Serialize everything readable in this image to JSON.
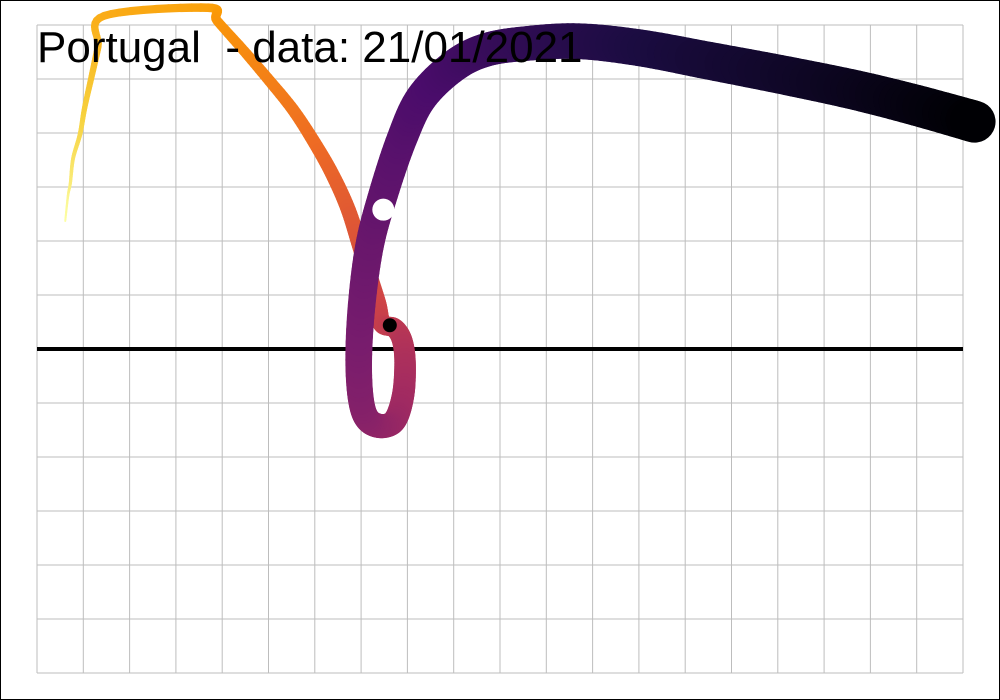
{
  "chart_data": {
    "type": "line",
    "title": "Portugal  - data: 21/01/2021",
    "xlabel": "",
    "ylabel": "",
    "xlim": [
      0,
      20
    ],
    "ylim": [
      -6,
      6
    ],
    "grid": true,
    "legend": "none",
    "reference_line": {
      "y": 0,
      "color": "#000000"
    },
    "series": [
      {
        "points": [
          {
            "x": 0.61,
            "y": 2.37
          },
          {
            "x": 0.67,
            "y": 2.84
          },
          {
            "x": 0.72,
            "y": 3.07
          },
          {
            "x": 0.78,
            "y": 3.53
          },
          {
            "x": 0.93,
            "y": 3.98
          },
          {
            "x": 1.03,
            "y": 4.47
          },
          {
            "x": 1.18,
            "y": 5.05
          },
          {
            "x": 1.32,
            "y": 5.6
          },
          {
            "x": 1.45,
            "y": 6.17
          },
          {
            "x": 3.69,
            "y": 6.32
          },
          {
            "x": 3.89,
            "y": 6.08
          },
          {
            "x": 4.42,
            "y": 5.57
          },
          {
            "x": 4.97,
            "y": 5.02
          },
          {
            "x": 5.53,
            "y": 4.43
          },
          {
            "x": 6.0,
            "y": 3.81
          },
          {
            "x": 6.37,
            "y": 3.25
          },
          {
            "x": 6.7,
            "y": 2.63
          },
          {
            "x": 6.95,
            "y": 1.98
          },
          {
            "x": 7.15,
            "y": 1.42
          },
          {
            "x": 7.35,
            "y": 0.85
          },
          {
            "x": 7.45,
            "y": 0.47
          },
          {
            "x": 7.72,
            "y": 0.39
          },
          {
            "x": 7.89,
            "y": 0.15
          },
          {
            "x": 7.95,
            "y": -0.28
          },
          {
            "x": 7.9,
            "y": -0.89
          },
          {
            "x": 7.7,
            "y": -1.35
          },
          {
            "x": 7.32,
            "y": -1.41
          },
          {
            "x": 7.05,
            "y": -1.15
          },
          {
            "x": 6.95,
            "y": -0.4
          },
          {
            "x": 7.0,
            "y": 0.7
          },
          {
            "x": 7.18,
            "y": 1.9
          },
          {
            "x": 7.48,
            "y": 2.87
          },
          {
            "x": 7.88,
            "y": 3.89
          },
          {
            "x": 8.3,
            "y": 4.65
          },
          {
            "x": 9.0,
            "y": 5.24
          },
          {
            "x": 9.7,
            "y": 5.54
          },
          {
            "x": 10.6,
            "y": 5.66
          },
          {
            "x": 11.7,
            "y": 5.7
          },
          {
            "x": 13.0,
            "y": 5.58
          },
          {
            "x": 14.5,
            "y": 5.34
          },
          {
            "x": 16.2,
            "y": 5.06
          },
          {
            "x": 17.7,
            "y": 4.79
          },
          {
            "x": 19.0,
            "y": 4.51
          },
          {
            "x": 20.25,
            "y": 4.21
          }
        ],
        "colors": [
          "#fcffa4",
          "#f7d13d",
          "#fb9b06",
          "#ed6925",
          "#cf4446",
          "#a52c60",
          "#781c6d",
          "#4a0c6b",
          "#1b0c41",
          "#000004"
        ],
        "widths": [
          2,
          42
        ]
      }
    ],
    "markers": [
      {
        "x": 7.62,
        "y": 0.44,
        "color": "#000000"
      },
      {
        "x": 7.48,
        "y": 2.58,
        "color": "#ffffff"
      }
    ]
  }
}
